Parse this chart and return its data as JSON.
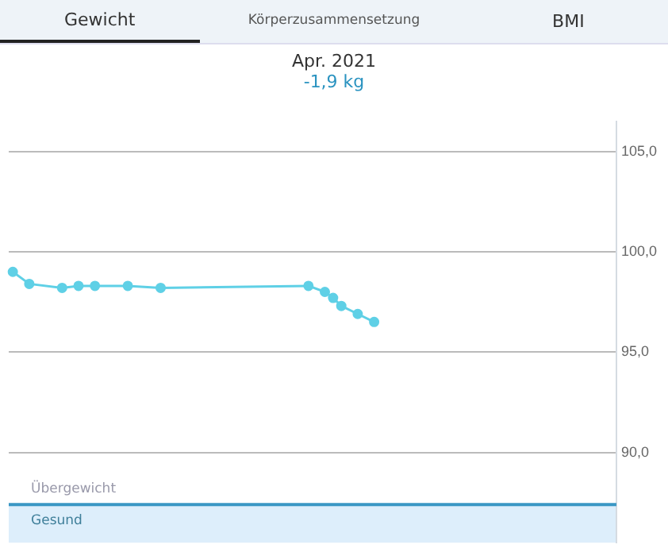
{
  "chart_data": {
    "type": "line",
    "title": "Apr. 2021",
    "subtitle": "-1,9 kg",
    "annotations": [
      "Gewicht",
      "Körperzusammensetzung",
      "BMI"
    ],
    "categories": [
      null,
      null,
      null,
      null,
      null,
      null,
      null,
      null,
      null,
      null,
      null,
      null,
      null,
      null,
      null,
      null,
      null,
      null,
      null,
      null,
      null,
      null,
      null,
      null,
      null,
      null,
      null,
      null,
      null,
      null,
      null,
      null,
      null,
      null,
      null,
      null,
      null,
      null,
      null,
      null,
      null,
      null,
      null,
      null,
      null,
      null,
      null,
      null,
      null,
      null,
      null,
      null,
      null,
      null,
      null,
      null,
      null,
      null,
      null,
      null,
      null,
      null,
      null,
      null,
      null,
      null,
      null,
      null,
      null,
      null,
      null,
      null,
      null,
      null
    ],
    "series": [
      {
        "color": "#5fd0e6",
        "values": [
          99.0,
          null,
          98.4,
          null,
          null,
          null,
          98.2,
          null,
          98.3,
          null,
          98.3,
          null,
          null,
          null,
          98.3,
          null,
          null,
          null,
          98.2,
          null,
          null,
          null,
          null,
          null,
          null,
          null,
          null,
          null,
          null,
          null,
          null,
          null,
          null,
          null,
          null,
          null,
          98.3,
          null,
          98.0,
          97.7,
          97.3,
          null,
          96.9,
          null,
          96.5,
          null,
          null,
          null,
          null,
          null,
          null,
          null,
          null,
          null,
          null,
          null,
          null,
          null,
          null,
          null,
          null,
          null,
          null,
          null,
          null,
          null,
          null,
          null,
          null,
          null,
          null,
          null,
          null,
          null
        ]
      }
    ],
    "ylim": [
      85.5,
      106.5
    ],
    "yticks": [
      {
        "value": 90,
        "label": "90,0"
      },
      {
        "value": 95,
        "label": "95,0"
      },
      {
        "value": 100,
        "label": "100,0"
      },
      {
        "value": 105,
        "label": "105,0"
      }
    ],
    "ref_lines": [
      {
        "axis": "y",
        "value": 87.4,
        "label": "Übergewicht",
        "color": "#3a97c4"
      }
    ],
    "bands": [
      {
        "axis": "y",
        "from": 85.5,
        "to": 87.4,
        "label": "Gesund",
        "color": "#ddeefb"
      }
    ],
    "tick_labels": "y",
    "grid": "y",
    "marker": "circle",
    "line_style": "solid",
    "legend": false
  }
}
